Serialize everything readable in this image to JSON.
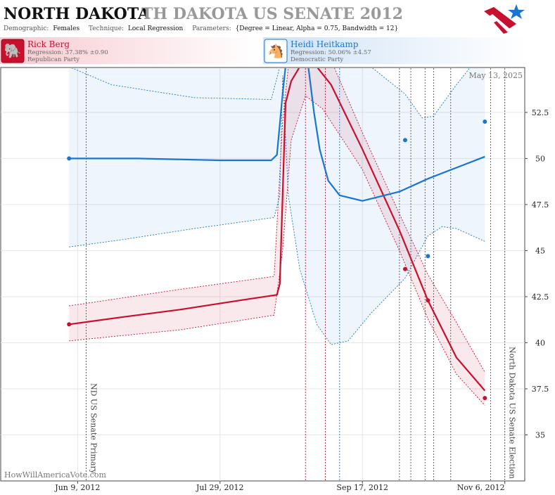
{
  "header": {
    "title": "NORTH DAKOTA",
    "subtitle": "TH DAKOTA US SENATE 2012",
    "demographic_label": "Demographic:",
    "demographic_value": "Females",
    "technique_label": "Technique:",
    "technique_value": "Local Regression",
    "parameters_label": "Parameters:",
    "parameters_value": "{Degree = Linear, Alpha = 0.75, Bandwidth = 12}"
  },
  "candidates": [
    {
      "name": "Rick Berg",
      "regression": "Regression: 37.38% ±0.90",
      "party": "Republican Party",
      "color": "#c8102e",
      "icon": "elephant-icon"
    },
    {
      "name": "Heidi Heitkamp",
      "regression": "Regression: 50.06% ±4.57",
      "party": "Democratic Party",
      "color": "#1a75cf",
      "icon": "donkey-icon"
    }
  ],
  "date_stamp": "May 13, 2025",
  "watermark": "HowWillAmericaVote.com",
  "events": [
    {
      "label": "ND US Senate Primary",
      "date": "2012-06-12"
    },
    {
      "label": "North Dakota US Senate Election",
      "date": "2012-11-06"
    }
  ],
  "chart_data": {
    "type": "line",
    "x_axis": {
      "type": "date",
      "ticks": [
        "Jun 9, 2012",
        "Jul 29, 2012",
        "Sep 17, 2012",
        "Nov 6, 2012"
      ],
      "range": [
        "2012-05-13",
        "2012-11-13"
      ]
    },
    "y_axis": {
      "ticks": [
        "35",
        "37.5",
        "40",
        "42.5",
        "45",
        "47.5",
        "50",
        "52.5"
      ],
      "range": [
        32.5,
        54.9
      ],
      "position": "right"
    },
    "grid": true,
    "series": [
      {
        "name": "Rick Berg",
        "color": "#c8102e",
        "line": [
          [
            "2012-06-06",
            41.0
          ],
          [
            "2012-06-25",
            41.4
          ],
          [
            "2012-07-15",
            41.8
          ],
          [
            "2012-08-05",
            42.3
          ],
          [
            "2012-08-18",
            42.6
          ],
          [
            "2012-08-19",
            43.2
          ],
          [
            "2012-08-20",
            48.0
          ],
          [
            "2012-08-21",
            53.0
          ],
          [
            "2012-08-23",
            54.2
          ],
          [
            "2012-08-26",
            55.5
          ],
          [
            "2012-09-01",
            55.5
          ],
          [
            "2012-09-06",
            54.0
          ],
          [
            "2012-09-17",
            50.5
          ],
          [
            "2012-09-30",
            46.1
          ],
          [
            "2012-10-10",
            42.3
          ],
          [
            "2012-10-20",
            39.2
          ],
          [
            "2012-10-30",
            37.4
          ]
        ],
        "band_upper": [
          [
            "2012-06-06",
            42.0
          ],
          [
            "2012-07-15",
            42.9
          ],
          [
            "2012-08-17",
            43.6
          ],
          [
            "2012-08-20",
            52.0
          ],
          [
            "2012-08-22",
            55.5
          ],
          [
            "2012-09-07",
            55.5
          ],
          [
            "2012-09-17",
            51.4
          ],
          [
            "2012-09-30",
            47.0
          ],
          [
            "2012-10-10",
            43.7
          ],
          [
            "2012-10-20",
            41.1
          ],
          [
            "2012-10-30",
            38.4
          ]
        ],
        "band_lower": [
          [
            "2012-06-06",
            40.1
          ],
          [
            "2012-07-15",
            40.7
          ],
          [
            "2012-08-17",
            41.5
          ],
          [
            "2012-08-20",
            45.0
          ],
          [
            "2012-08-23",
            51.0
          ],
          [
            "2012-08-28",
            53.4
          ],
          [
            "2012-09-03",
            52.7
          ],
          [
            "2012-09-17",
            49.4
          ],
          [
            "2012-09-30",
            45.0
          ],
          [
            "2012-10-10",
            41.3
          ],
          [
            "2012-10-20",
            38.3
          ],
          [
            "2012-10-30",
            36.6
          ]
        ],
        "points": [
          [
            "2012-06-06",
            41.0
          ],
          [
            "2012-10-02",
            44.0
          ],
          [
            "2012-10-10",
            42.3
          ],
          [
            "2012-10-30",
            37.0
          ]
        ]
      },
      {
        "name": "Heidi Heitkamp",
        "color": "#1a75cf",
        "line": [
          [
            "2012-06-06",
            50.0
          ],
          [
            "2012-06-30",
            50.0
          ],
          [
            "2012-07-29",
            49.9
          ],
          [
            "2012-08-16",
            49.9
          ],
          [
            "2012-08-18",
            50.2
          ],
          [
            "2012-08-20",
            53.5
          ],
          [
            "2012-08-21",
            55.5
          ],
          [
            "2012-08-29",
            55.5
          ],
          [
            "2012-08-31",
            52.5
          ],
          [
            "2012-09-02",
            50.5
          ],
          [
            "2012-09-05",
            48.8
          ],
          [
            "2012-09-09",
            48.0
          ],
          [
            "2012-09-17",
            47.7
          ],
          [
            "2012-09-30",
            48.2
          ],
          [
            "2012-10-10",
            48.9
          ],
          [
            "2012-10-20",
            49.5
          ],
          [
            "2012-10-30",
            50.1
          ]
        ],
        "band_upper": [
          [
            "2012-06-06",
            55.5
          ],
          [
            "2012-08-19",
            55.5
          ],
          [
            "2012-08-23",
            55.5
          ],
          [
            "2012-09-10",
            55.5
          ],
          [
            "2012-09-20",
            55.0
          ],
          [
            "2012-10-02",
            53.5
          ],
          [
            "2012-10-08",
            52.2
          ],
          [
            "2012-10-12",
            52.3
          ],
          [
            "2012-10-20",
            54.0
          ],
          [
            "2012-10-25",
            55.5
          ],
          [
            "2012-10-30",
            55.5
          ]
        ],
        "band_upper_dash": [
          [
            "2012-06-06",
            55.5
          ],
          [
            "2012-06-21",
            54.0
          ],
          [
            "2012-07-20",
            53.3
          ],
          [
            "2012-08-16",
            53.2
          ],
          [
            "2012-08-19",
            55.5
          ]
        ],
        "band_lower": [
          [
            "2012-06-06",
            45.2
          ],
          [
            "2012-06-25",
            45.6
          ],
          [
            "2012-07-20",
            46.2
          ],
          [
            "2012-08-17",
            46.8
          ],
          [
            "2012-08-19",
            48.0
          ],
          [
            "2012-08-20",
            54.5
          ],
          [
            "2012-08-22",
            48.0
          ],
          [
            "2012-08-26",
            44.0
          ],
          [
            "2012-09-01",
            41.0
          ],
          [
            "2012-09-06",
            39.9
          ],
          [
            "2012-09-12",
            40.1
          ],
          [
            "2012-09-20",
            41.6
          ],
          [
            "2012-10-02",
            43.5
          ],
          [
            "2012-10-10",
            45.8
          ],
          [
            "2012-10-15",
            46.3
          ],
          [
            "2012-10-20",
            46.2
          ],
          [
            "2012-10-30",
            45.5
          ]
        ],
        "points": [
          [
            "2012-06-06",
            50.0
          ],
          [
            "2012-10-02",
            51.0
          ],
          [
            "2012-10-10",
            44.7
          ],
          [
            "2012-10-30",
            52.0
          ]
        ]
      }
    ],
    "vlines": [
      {
        "date": "2012-06-12",
        "color": "#555"
      },
      {
        "date": "2012-08-28",
        "color": "#c8102e"
      },
      {
        "date": "2012-09-04",
        "color": "#c8102e"
      },
      {
        "date": "2012-09-09",
        "color": "#1a75cf"
      },
      {
        "date": "2012-09-30",
        "color": "#555"
      },
      {
        "date": "2012-10-04",
        "color": "#555"
      },
      {
        "date": "2012-10-09",
        "color": "#555"
      },
      {
        "date": "2012-10-12",
        "color": "#555"
      },
      {
        "date": "2012-10-18",
        "color": "#555"
      },
      {
        "date": "2012-11-01",
        "color": "#555"
      },
      {
        "date": "2012-11-06",
        "color": "#555"
      }
    ]
  }
}
